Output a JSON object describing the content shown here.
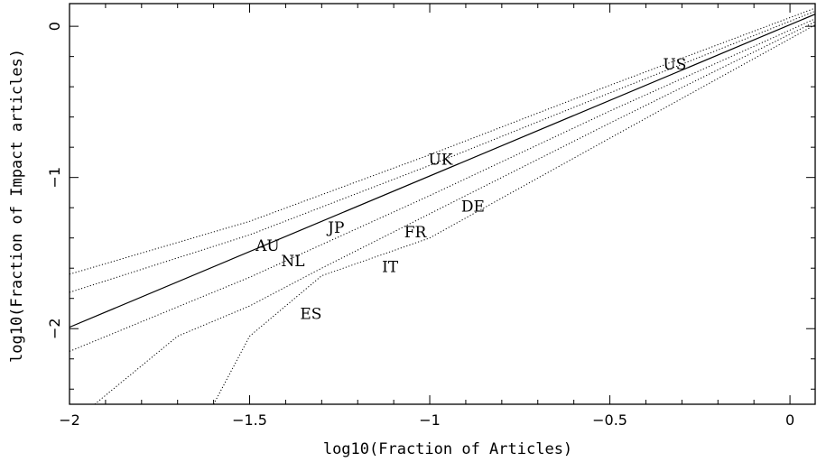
{
  "chart_data": {
    "type": "scatter",
    "xlabel": "log10(Fraction of Articles)",
    "ylabel": "log10(Fraction of Impact articles)",
    "xlim": [
      -2.0,
      0.07
    ],
    "ylim": [
      -2.5,
      0.15
    ],
    "x_ticks": [
      -2,
      -1.5,
      -1,
      -0.5,
      0
    ],
    "x_tick_labels": [
      "−2",
      "−1.5",
      "−1",
      "−0.5",
      "0"
    ],
    "y_ticks": [
      -2,
      -1,
      0
    ],
    "y_tick_labels": [
      "−2",
      "−1",
      "0"
    ],
    "grid": false,
    "points": [
      {
        "label": "US",
        "x": -0.32,
        "y": -0.25
      },
      {
        "label": "UK",
        "x": -0.97,
        "y": -0.88
      },
      {
        "label": "DE",
        "x": -0.88,
        "y": -1.19
      },
      {
        "label": "FR",
        "x": -1.04,
        "y": -1.36
      },
      {
        "label": "JP",
        "x": -1.26,
        "y": -1.33
      },
      {
        "label": "AU",
        "x": -1.45,
        "y": -1.45
      },
      {
        "label": "NL",
        "x": -1.38,
        "y": -1.55
      },
      {
        "label": "IT",
        "x": -1.11,
        "y": -1.59
      },
      {
        "label": "ES",
        "x": -1.33,
        "y": -1.9
      }
    ],
    "reference_line": {
      "style": "solid",
      "x": [
        -2.0,
        0.07
      ],
      "y": [
        -1.99,
        0.08
      ]
    },
    "envelope_lines": [
      {
        "style": "dotted",
        "x": [
          -2.0,
          -1.5,
          -1.0,
          -0.5,
          0.07
        ],
        "y": [
          -1.64,
          -1.29,
          -0.85,
          -0.39,
          0.12
        ]
      },
      {
        "style": "dotted",
        "x": [
          -2.0,
          -1.5,
          -1.0,
          -0.5,
          0.07
        ],
        "y": [
          -1.76,
          -1.38,
          -0.92,
          -0.44,
          0.1
        ]
      },
      {
        "style": "dotted",
        "x": [
          -2.0,
          -1.5,
          -1.0,
          -0.5,
          0.07
        ],
        "y": [
          -2.15,
          -1.66,
          -1.12,
          -0.56,
          0.05
        ]
      },
      {
        "style": "dotted",
        "x": [
          -1.93,
          -1.7,
          -1.5,
          -1.3,
          -1.0,
          -0.5,
          0.07
        ],
        "y": [
          -2.5,
          -2.05,
          -1.85,
          -1.6,
          -1.24,
          -0.64,
          0.03
        ]
      },
      {
        "style": "dotted",
        "x": [
          -1.6,
          -1.5,
          -1.3,
          -1.0,
          -0.5,
          0.07
        ],
        "y": [
          -2.5,
          -2.05,
          -1.65,
          -1.4,
          -0.74,
          0.01
        ]
      }
    ]
  }
}
